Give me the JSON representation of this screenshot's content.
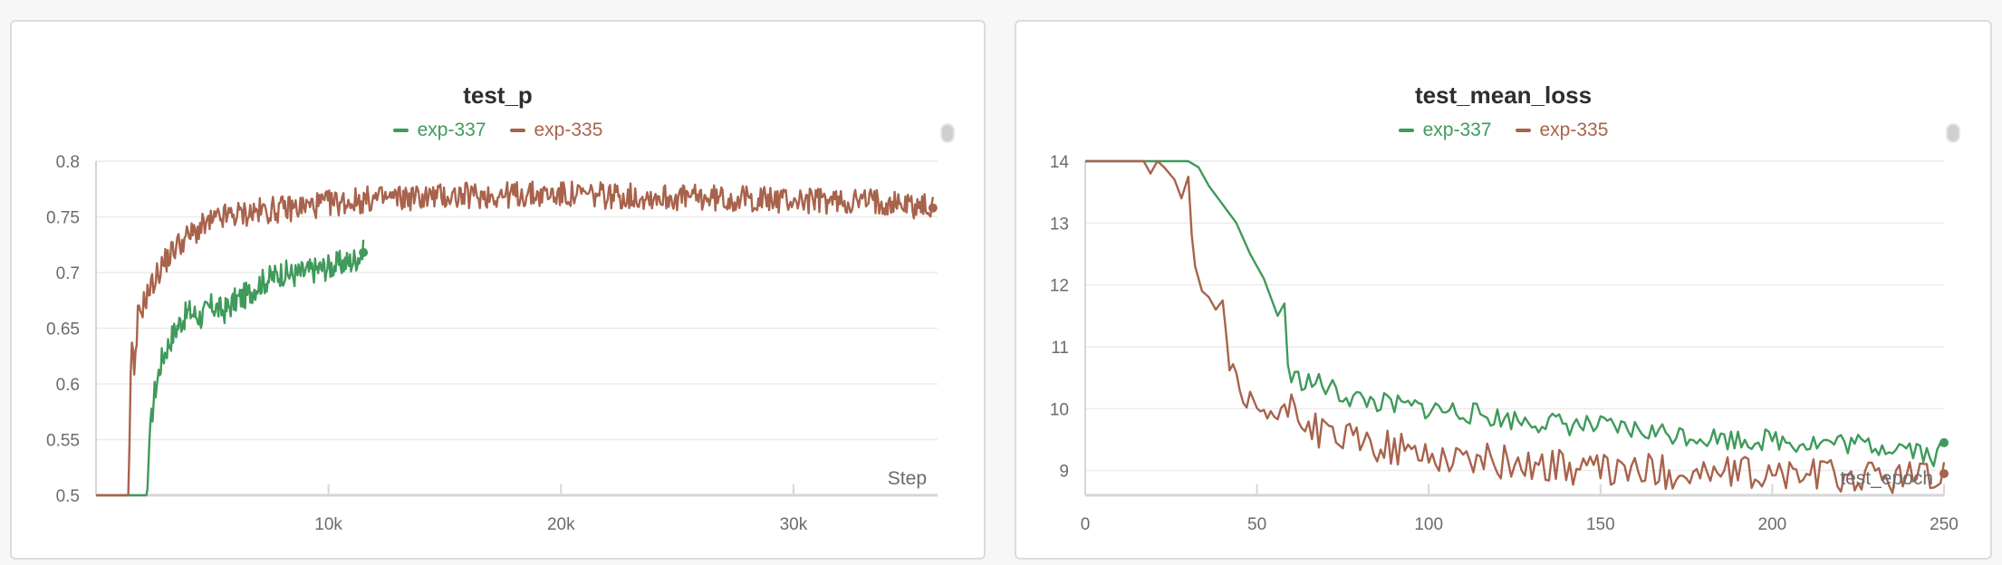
{
  "colors": {
    "exp337": "#3f9a5b",
    "exp335": "#a8634c",
    "grid": "#ebebeb",
    "axis": "#d6d6d6",
    "tick": "#6b6b6b"
  },
  "left": {
    "title": "test_p",
    "legend": [
      {
        "label": "exp-337"
      },
      {
        "label": "exp-335"
      }
    ],
    "x_axis_label": "Step"
  },
  "right": {
    "title": "test_mean_loss",
    "legend": [
      {
        "label": "exp-337"
      },
      {
        "label": "exp-335"
      }
    ],
    "x_axis_label": "test_epoch"
  },
  "chart_data": [
    {
      "type": "line",
      "title": "test_p",
      "xlabel": "Step",
      "ylabel": "",
      "xlim": [
        0,
        36200
      ],
      "ylim": [
        0.5,
        0.8
      ],
      "xticks": [
        10000,
        20000,
        30000
      ],
      "xtick_labels": [
        "10k",
        "20k",
        "30k"
      ],
      "yticks": [
        0.5,
        0.55,
        0.6,
        0.65,
        0.7,
        0.75,
        0.8
      ],
      "ytick_labels": [
        "0.5",
        "0.55",
        "0.6",
        "0.65",
        "0.7",
        "0.75",
        "0.8"
      ],
      "grid": true,
      "legend_position": "top-center",
      "series": [
        {
          "name": "exp-337",
          "x": [
            0,
            1000,
            2200,
            2300,
            2500,
            2800,
            3200,
            3600,
            4000,
            4500,
            5000,
            5500,
            6000,
            6500,
            7000,
            7500,
            8000,
            8500,
            9000,
            9500,
            10000,
            10500,
            11000,
            11500
          ],
          "y": [
            0.5,
            0.5,
            0.5,
            0.55,
            0.59,
            0.62,
            0.64,
            0.655,
            0.665,
            0.66,
            0.67,
            0.665,
            0.675,
            0.68,
            0.69,
            0.695,
            0.7,
            0.698,
            0.7,
            0.703,
            0.705,
            0.708,
            0.71,
            0.718
          ]
        },
        {
          "name": "exp-335",
          "x": [
            0,
            1000,
            1400,
            1500,
            1550,
            1650,
            1800,
            2200,
            2800,
            3500,
            4500,
            5500,
            7000,
            8500,
            10000,
            12000,
            14000,
            16000,
            18000,
            20000,
            22000,
            24000,
            26000,
            28000,
            30000,
            32000,
            34000,
            36000
          ],
          "y": [
            0.5,
            0.5,
            0.5,
            0.62,
            0.64,
            0.6,
            0.66,
            0.68,
            0.705,
            0.725,
            0.74,
            0.75,
            0.755,
            0.758,
            0.762,
            0.766,
            0.768,
            0.769,
            0.77,
            0.77,
            0.769,
            0.768,
            0.767,
            0.766,
            0.765,
            0.764,
            0.764,
            0.758
          ]
        }
      ]
    },
    {
      "type": "line",
      "title": "test_mean_loss",
      "xlabel": "test_epoch",
      "ylabel": "",
      "xlim": [
        0,
        250
      ],
      "ylim": [
        8.6,
        14
      ],
      "xticks": [
        0,
        50,
        100,
        150,
        200,
        250
      ],
      "xtick_labels": [
        "0",
        "50",
        "100",
        "150",
        "200",
        "250"
      ],
      "yticks": [
        9,
        10,
        11,
        12,
        13,
        14
      ],
      "ytick_labels": [
        "9",
        "10",
        "11",
        "12",
        "13",
        "14"
      ],
      "grid": true,
      "legend_position": "top-center",
      "series": [
        {
          "name": "exp-337",
          "x": [
            0,
            30,
            33,
            36,
            40,
            44,
            48,
            52,
            56,
            58,
            59,
            60,
            64,
            68,
            72,
            76,
            80,
            90,
            100,
            110,
            120,
            130,
            140,
            150,
            160,
            170,
            180,
            190,
            200,
            210,
            220,
            230,
            240,
            248,
            250
          ],
          "y": [
            14,
            14,
            13.9,
            13.6,
            13.3,
            13.0,
            12.5,
            12.1,
            11.5,
            11.7,
            10.7,
            10.5,
            10.45,
            10.4,
            10.3,
            10.2,
            10.15,
            10.05,
            10.0,
            9.95,
            9.85,
            9.8,
            9.75,
            9.7,
            9.65,
            9.6,
            9.55,
            9.5,
            9.5,
            9.45,
            9.45,
            9.4,
            9.4,
            9.2,
            9.45
          ]
        },
        {
          "name": "exp-335",
          "x": [
            0,
            17,
            19,
            21,
            23,
            26,
            28,
            30,
            31,
            32,
            34,
            36,
            38,
            40,
            42,
            44,
            46,
            50,
            54,
            58,
            60,
            64,
            70,
            80,
            90,
            100,
            110,
            120,
            130,
            140,
            150,
            160,
            170,
            180,
            190,
            200,
            210,
            220,
            230,
            240,
            248,
            250
          ],
          "y": [
            14,
            14,
            13.8,
            14,
            13.9,
            13.7,
            13.4,
            13.75,
            12.8,
            12.3,
            11.9,
            11.8,
            11.6,
            11.75,
            10.7,
            10.3,
            10.0,
            10.0,
            9.9,
            9.8,
            10.2,
            9.75,
            9.6,
            9.45,
            9.35,
            9.25,
            9.2,
            9.15,
            9.1,
            9.05,
            9.0,
            9.0,
            8.98,
            8.95,
            8.95,
            8.92,
            8.95,
            8.9,
            8.9,
            8.9,
            8.85,
            8.95
          ]
        }
      ]
    }
  ]
}
